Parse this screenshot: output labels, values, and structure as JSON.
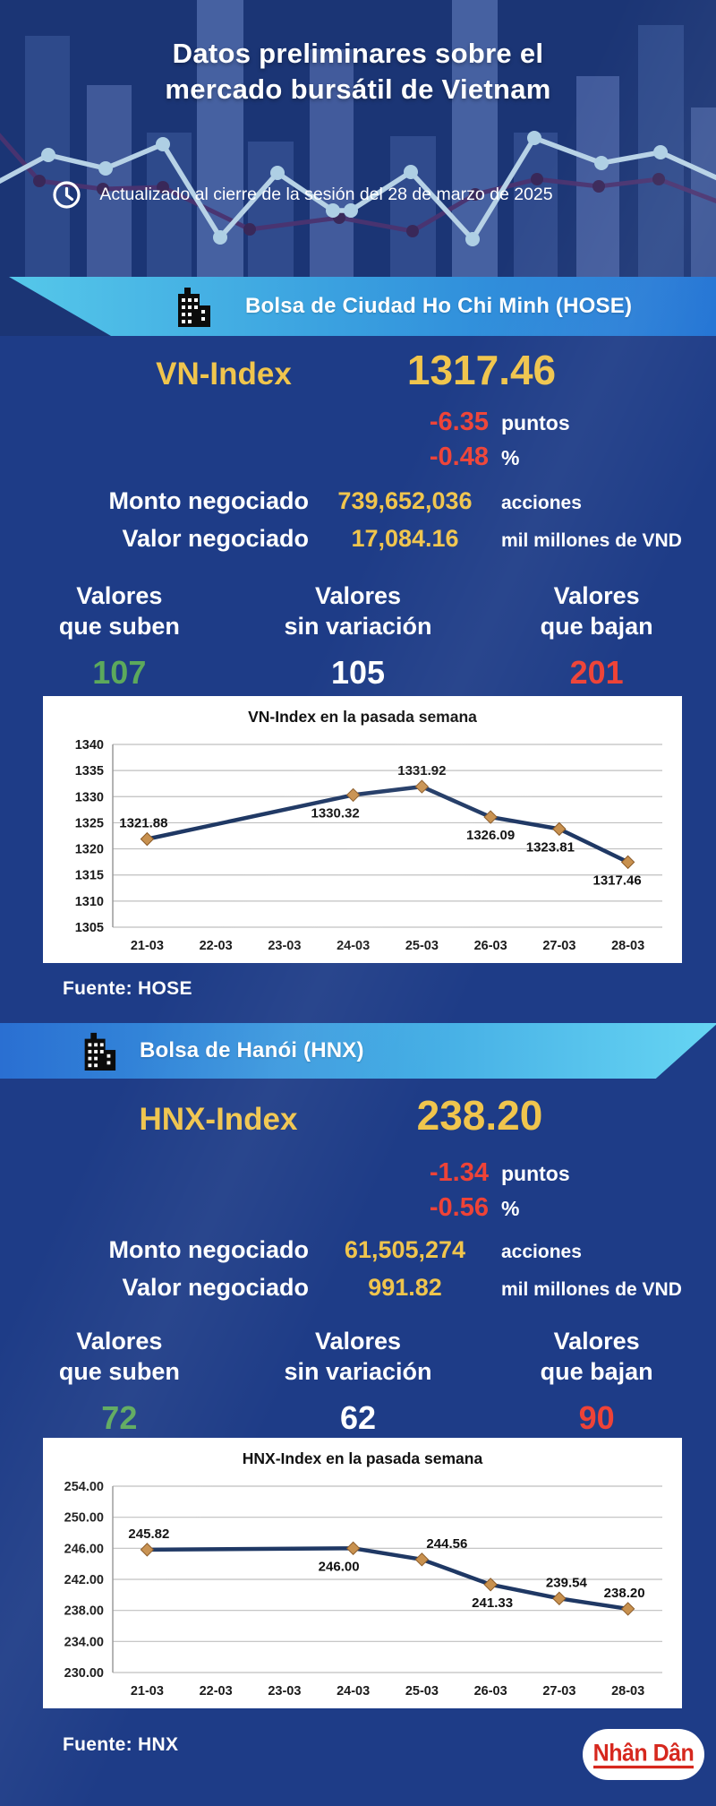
{
  "colors": {
    "background": "#1e3c87",
    "header_background": "#1b3575",
    "accent_yellow": "#f0c54d",
    "negative_red": "#ee4337",
    "positive_green": "#5ca95c",
    "banner_cyan": "#56c9ea",
    "banner_blue": "#2173d4",
    "chart_line_navy": "#1f3864",
    "chart_marker_tan": "#c8914f",
    "logo_red": "#d6281e"
  },
  "header": {
    "title_line1": "Datos preliminares sobre el",
    "title_line2": "mercado bursátil de Vietnam",
    "updated_text": "Actualizado al cierre de la sesión del 28 de marzo de 2025"
  },
  "hose": {
    "banner_title": "Bolsa de Ciudad Ho Chi Minh (HOSE)",
    "index_label": "VN-Index",
    "index_value": "1317.46",
    "change_points": "-6.35",
    "change_points_unit": "puntos",
    "change_percent": "-0.48",
    "change_percent_unit": "%",
    "volume_label": "Monto negociado",
    "volume_value": "739,652,036",
    "volume_unit": "acciones",
    "turnover_label": "Valor negociado",
    "turnover_value": "17,084.16",
    "turnover_unit": "mil millones de VND",
    "advancers_label_line1": "Valores",
    "advancers_label_line2": "que suben",
    "advancers_value": "107",
    "unchanged_label_line1": "Valores",
    "unchanged_label_line2": "sin variación",
    "unchanged_value": "105",
    "decliners_label_line1": "Valores",
    "decliners_label_line2": "que bajan",
    "decliners_value": "201",
    "source": "Fuente: HOSE"
  },
  "hnx": {
    "banner_title": "Bolsa de Hanói (HNX)",
    "index_label": "HNX-Index",
    "index_value": "238.20",
    "change_points": "-1.34",
    "change_points_unit": "puntos",
    "change_percent": "-0.56",
    "change_percent_unit": "%",
    "volume_label": "Monto negociado",
    "volume_value": "61,505,274",
    "volume_unit": "acciones",
    "turnover_label": "Valor negociado",
    "turnover_value": "991.82",
    "turnover_unit": "mil millones de VND",
    "advancers_label_line1": "Valores",
    "advancers_label_line2": "que suben",
    "advancers_value": "72",
    "unchanged_label_line1": "Valores",
    "unchanged_label_line2": "sin variación",
    "unchanged_value": "62",
    "decliners_label_line1": "Valores",
    "decliners_label_line2": "que bajan",
    "decliners_value": "90",
    "source": "Fuente:  HNX"
  },
  "footer": {
    "logo_text": "Nhân Dân"
  },
  "chart_data": [
    {
      "type": "line",
      "title": "VN-Index en la pasada semana",
      "xlabel": "",
      "ylabel": "",
      "categories": [
        "21-03",
        "22-03",
        "23-03",
        "24-03",
        "25-03",
        "26-03",
        "27-03",
        "28-03"
      ],
      "ylim": [
        1305,
        1340
      ],
      "yticks": [
        "1340",
        "1335",
        "1330",
        "1325",
        "1320",
        "1315",
        "1310",
        "1305"
      ],
      "grid": true,
      "legend": false,
      "line_color": "#1f3864",
      "marker_color": "#c8914f",
      "marker": "diamond",
      "points": [
        {
          "x": "21-03",
          "y": 1321.88,
          "label": "1321.88",
          "label_pos": "above",
          "label_dx": -4
        },
        {
          "x": "24-03",
          "y": 1330.32,
          "label": "1330.32",
          "label_pos": "below",
          "label_dx": -20
        },
        {
          "x": "25-03",
          "y": 1331.92,
          "label": "1331.92",
          "label_pos": "above",
          "label_dx": 0
        },
        {
          "x": "26-03",
          "y": 1326.09,
          "label": "1326.09",
          "label_pos": "below",
          "label_dx": 0
        },
        {
          "x": "27-03",
          "y": 1323.81,
          "label": "1323.81",
          "label_pos": "below",
          "label_dx": -10
        },
        {
          "x": "28-03",
          "y": 1317.46,
          "label": "1317.46",
          "label_pos": "below",
          "label_dx": -12
        }
      ]
    },
    {
      "type": "line",
      "title": "HNX-Index en la pasada semana",
      "xlabel": "",
      "ylabel": "",
      "categories": [
        "21-03",
        "22-03",
        "23-03",
        "24-03",
        "25-03",
        "26-03",
        "27-03",
        "28-03"
      ],
      "ylim": [
        230,
        254
      ],
      "yticks": [
        "254.00",
        "250.00",
        "246.00",
        "242.00",
        "238.00",
        "234.00",
        "230.00"
      ],
      "grid": true,
      "legend": false,
      "line_color": "#1f3864",
      "marker_color": "#c8914f",
      "marker": "diamond",
      "points": [
        {
          "x": "21-03",
          "y": 245.82,
          "label": "245.82",
          "label_pos": "above",
          "label_dx": 2
        },
        {
          "x": "24-03",
          "y": 246.0,
          "label": "246.00",
          "label_pos": "below",
          "label_dx": -16
        },
        {
          "x": "25-03",
          "y": 244.56,
          "label": "244.56",
          "label_pos": "above",
          "label_dx": 28
        },
        {
          "x": "26-03",
          "y": 241.33,
          "label": "241.33",
          "label_pos": "below",
          "label_dx": 2
        },
        {
          "x": "27-03",
          "y": 239.54,
          "label": "239.54",
          "label_pos": "above",
          "label_dx": 8
        },
        {
          "x": "28-03",
          "y": 238.2,
          "label": "238.20",
          "label_pos": "above",
          "label_dx": -4
        }
      ]
    }
  ]
}
